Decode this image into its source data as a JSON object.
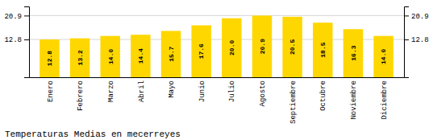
{
  "chart_data": {
    "type": "bar",
    "title": "Temperaturas Medias en mecerreyes",
    "categories": [
      "Enero",
      "Febrero",
      "Marzo",
      "Abril",
      "Mayo",
      "Junio",
      "Julio",
      "Agosto",
      "Septiembre",
      "Octubre",
      "Noviembre",
      "Diciembre"
    ],
    "values": [
      12.8,
      13.2,
      14.0,
      14.4,
      15.7,
      17.6,
      20.0,
      20.9,
      20.5,
      18.5,
      16.3,
      14.0
    ],
    "value_labels": [
      "12.8",
      "13.2",
      "14.0",
      "14.4",
      "15.7",
      "17.6",
      "20.0",
      "20.9",
      "20.5",
      "18.5",
      "16.3",
      "14.0"
    ],
    "color": "#FFD700",
    "ylim": [
      0,
      24
    ],
    "yticks": [
      12.8,
      20.9
    ],
    "y2lim": [
      0,
      24
    ],
    "y2ticks": [
      12.8,
      20.9
    ],
    "grid": true,
    "data_labels": true
  }
}
